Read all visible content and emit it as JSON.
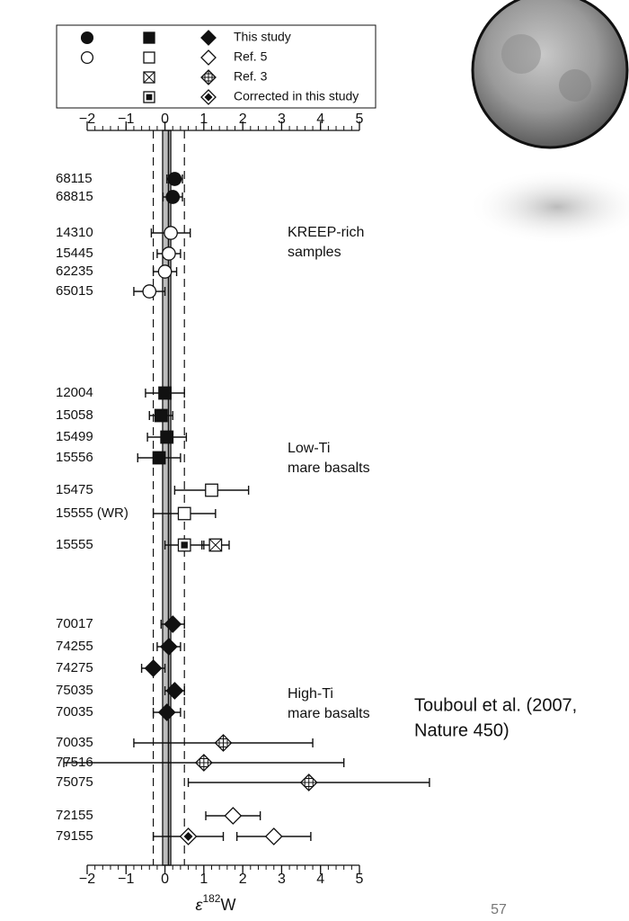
{
  "chart_data": {
    "type": "dot",
    "xlabel": {
      "symbol": "ε",
      "sup": "182",
      "base": "W"
    },
    "xlim": [
      -2,
      5
    ],
    "xticks": [
      {
        "value": -2,
        "label": "−2"
      },
      {
        "value": -1,
        "label": "−1"
      },
      0,
      1,
      2,
      3,
      4,
      5
    ],
    "xminor_step": 0.2,
    "categories": [
      "68115",
      "68815",
      "14310",
      "15445",
      "62235",
      "65015",
      "12004",
      "15058",
      "15499",
      "15556",
      "15475",
      "15555 (WR)",
      "15555",
      "70017",
      "74255",
      "74275",
      "75035",
      "70035",
      "70035",
      "77516",
      "75075",
      "72155",
      "79155"
    ],
    "markers": [
      "circle",
      "circle",
      "circle",
      "circle",
      "circle",
      "circle",
      "square",
      "square",
      "square",
      "square",
      "square",
      "square",
      "square",
      "diamond",
      "diamond",
      "diamond",
      "diamond",
      "diamond",
      "diamond",
      "diamond",
      "diamond",
      "diamond",
      "diamond"
    ],
    "series": [
      {
        "name": "This study",
        "style": "filled",
        "values": [
          0.25,
          0.2,
          null,
          null,
          null,
          null,
          0.0,
          -0.1,
          0.05,
          -0.15,
          null,
          null,
          null,
          0.2,
          0.1,
          -0.3,
          0.25,
          0.05,
          null,
          null,
          null,
          null,
          null
        ],
        "errors": [
          0.2,
          0.25,
          null,
          null,
          null,
          null,
          0.5,
          0.3,
          0.5,
          0.55,
          null,
          null,
          null,
          0.3,
          0.3,
          0.3,
          0.25,
          0.35,
          null,
          null,
          null,
          null,
          null
        ]
      },
      {
        "name": "Ref. 5",
        "style": "open",
        "values": [
          null,
          null,
          0.15,
          0.1,
          0.0,
          -0.4,
          null,
          null,
          null,
          null,
          1.2,
          0.5,
          null,
          null,
          null,
          null,
          null,
          null,
          null,
          null,
          null,
          1.75,
          2.8
        ],
        "errors": [
          null,
          null,
          0.5,
          0.3,
          0.3,
          0.4,
          null,
          null,
          null,
          null,
          0.95,
          0.8,
          null,
          null,
          null,
          null,
          null,
          null,
          null,
          null,
          null,
          0.7,
          0.95
        ]
      },
      {
        "name": "Ref. 3",
        "style": "crossed",
        "values": [
          null,
          null,
          null,
          null,
          null,
          null,
          null,
          null,
          null,
          null,
          null,
          null,
          1.3,
          null,
          null,
          null,
          null,
          null,
          1.5,
          1.0,
          3.7,
          null,
          null
        ],
        "errors": [
          null,
          null,
          null,
          null,
          null,
          null,
          null,
          null,
          null,
          null,
          null,
          null,
          0.35,
          null,
          null,
          null,
          null,
          null,
          2.3,
          3.6,
          3.1,
          null,
          null
        ]
      },
      {
        "name": "Corrected in this study",
        "style": "dotted",
        "values": [
          null,
          null,
          null,
          null,
          null,
          null,
          null,
          null,
          null,
          null,
          null,
          null,
          0.5,
          null,
          null,
          null,
          null,
          null,
          null,
          null,
          null,
          null,
          0.6
        ],
        "errors": [
          null,
          null,
          null,
          null,
          null,
          null,
          null,
          null,
          null,
          null,
          null,
          null,
          0.5,
          null,
          null,
          null,
          null,
          null,
          null,
          null,
          null,
          null,
          0.9
        ]
      }
    ],
    "ref_lines": {
      "band": [
        -0.06,
        0.15
      ],
      "center": 0.09,
      "dashed": [
        -0.3,
        0.5
      ]
    },
    "annotations": [
      {
        "text": [
          "KREEP-rich",
          "samples"
        ]
      },
      {
        "text": [
          "Low-Ti",
          "mare basalts"
        ]
      },
      {
        "text": [
          "High-Ti",
          "mare basalts"
        ]
      }
    ]
  },
  "citation": [
    "Touboul et al. (2007,",
    "Nature 450)"
  ],
  "page_number": "57"
}
